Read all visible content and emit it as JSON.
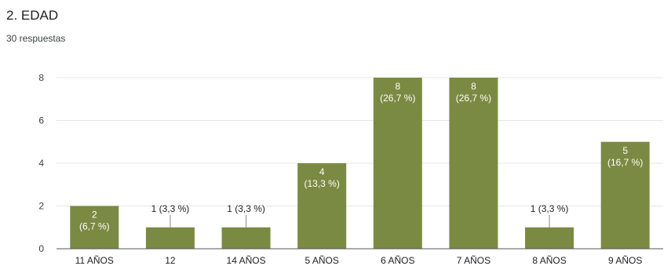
{
  "header": {
    "title": "2. EDAD",
    "responses": "30 respuestas"
  },
  "colors": {
    "bar": "#7a8a42",
    "grid": "#e5e5e5",
    "axis": "#555555"
  },
  "chart_data": {
    "type": "bar",
    "title": "2. EDAD",
    "subtitle": "30 respuestas",
    "categories": [
      "11 AÑOS",
      "12",
      "14 AÑOS",
      "5 AÑOS",
      "6 AÑOS",
      "7 AÑOS",
      "8 AÑOS",
      "9 AÑOS"
    ],
    "values": [
      2,
      1,
      1,
      4,
      8,
      8,
      1,
      5
    ],
    "data_labels": [
      [
        "2",
        "(6,7 %)"
      ],
      [
        "1 (3,3 %)"
      ],
      [
        "1 (3,3 %)"
      ],
      [
        "4",
        "(13,3 %)"
      ],
      [
        "8",
        "(26,7 %)"
      ],
      [
        "8",
        "(26,7 %)"
      ],
      [
        "1 (3,3 %)"
      ],
      [
        "5",
        "(16,7 %)"
      ]
    ],
    "yticks": [
      "0",
      "2",
      "4",
      "6",
      "8"
    ],
    "ylim": [
      0,
      8
    ],
    "xlabel": "",
    "ylabel": "",
    "grid": true,
    "legend": "none"
  }
}
